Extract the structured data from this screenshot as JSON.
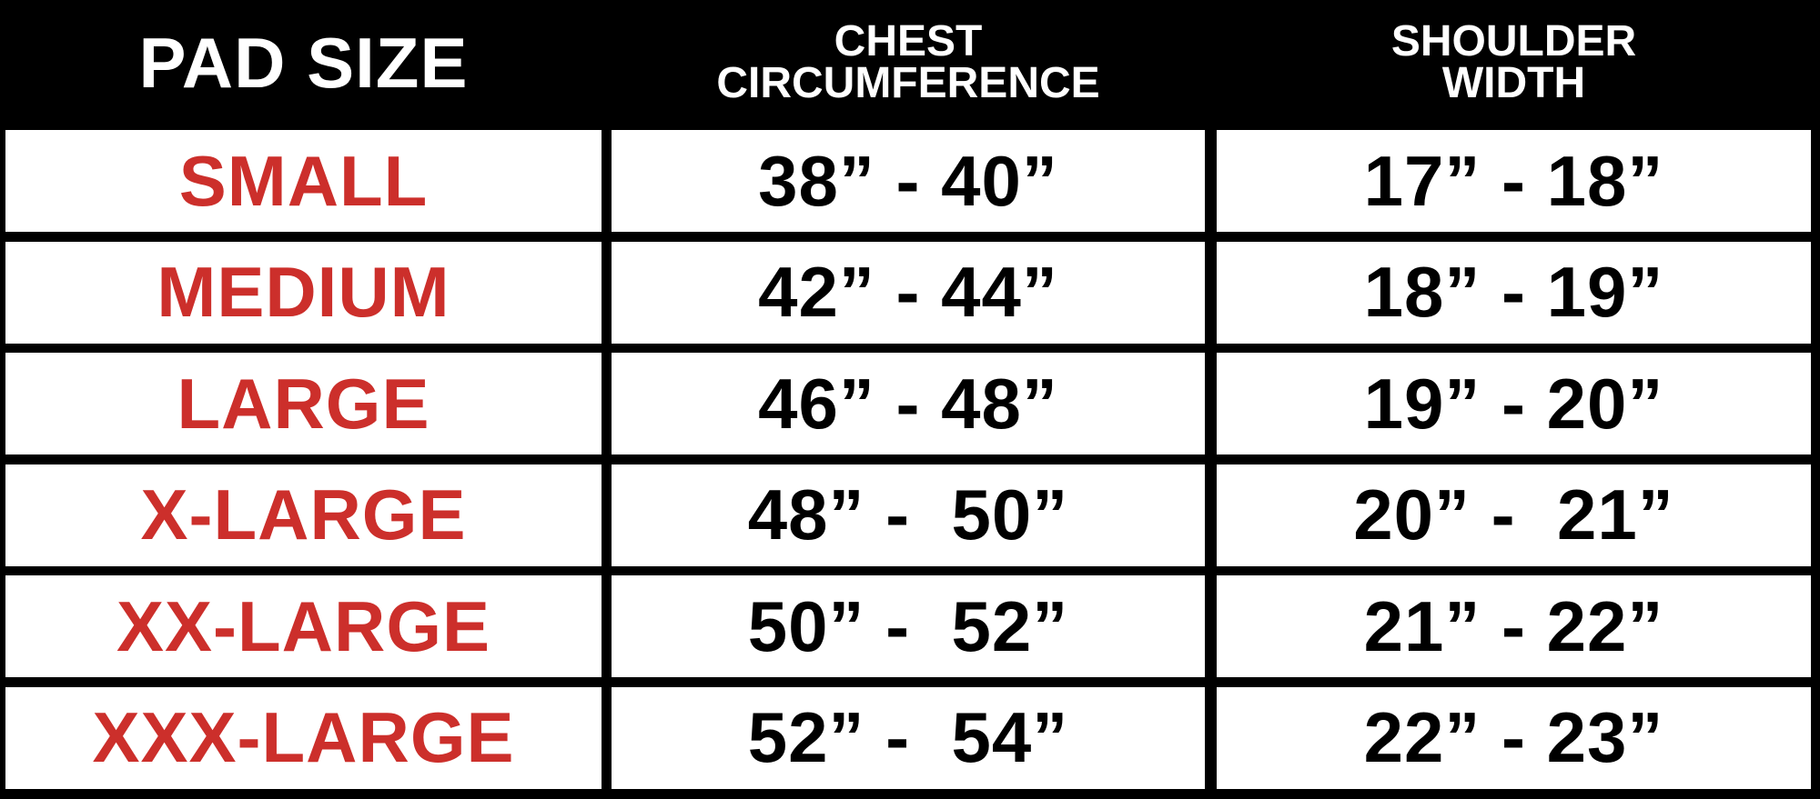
{
  "table": {
    "header": [
      {
        "lines": [
          "PAD SIZE"
        ]
      },
      {
        "lines": [
          "CHEST",
          "CIRCUMFERENCE"
        ]
      },
      {
        "lines": [
          "SHOULDER",
          "WIDTH"
        ]
      }
    ],
    "rows": [
      [
        "SMALL",
        "38” - 40”",
        "17” - 18”"
      ],
      [
        "MEDIUM",
        "42” - 44”",
        "18” - 19”"
      ],
      [
        "LARGE",
        "46” - 48”",
        "19” - 20”"
      ],
      [
        "X-LARGE",
        "48” -  50”",
        "20” -  21”"
      ],
      [
        "XX-LARGE",
        "50” -  52”",
        "21” - 22”"
      ],
      [
        "XXX-LARGE",
        "52” -  54”",
        "22” - 23”"
      ]
    ]
  }
}
